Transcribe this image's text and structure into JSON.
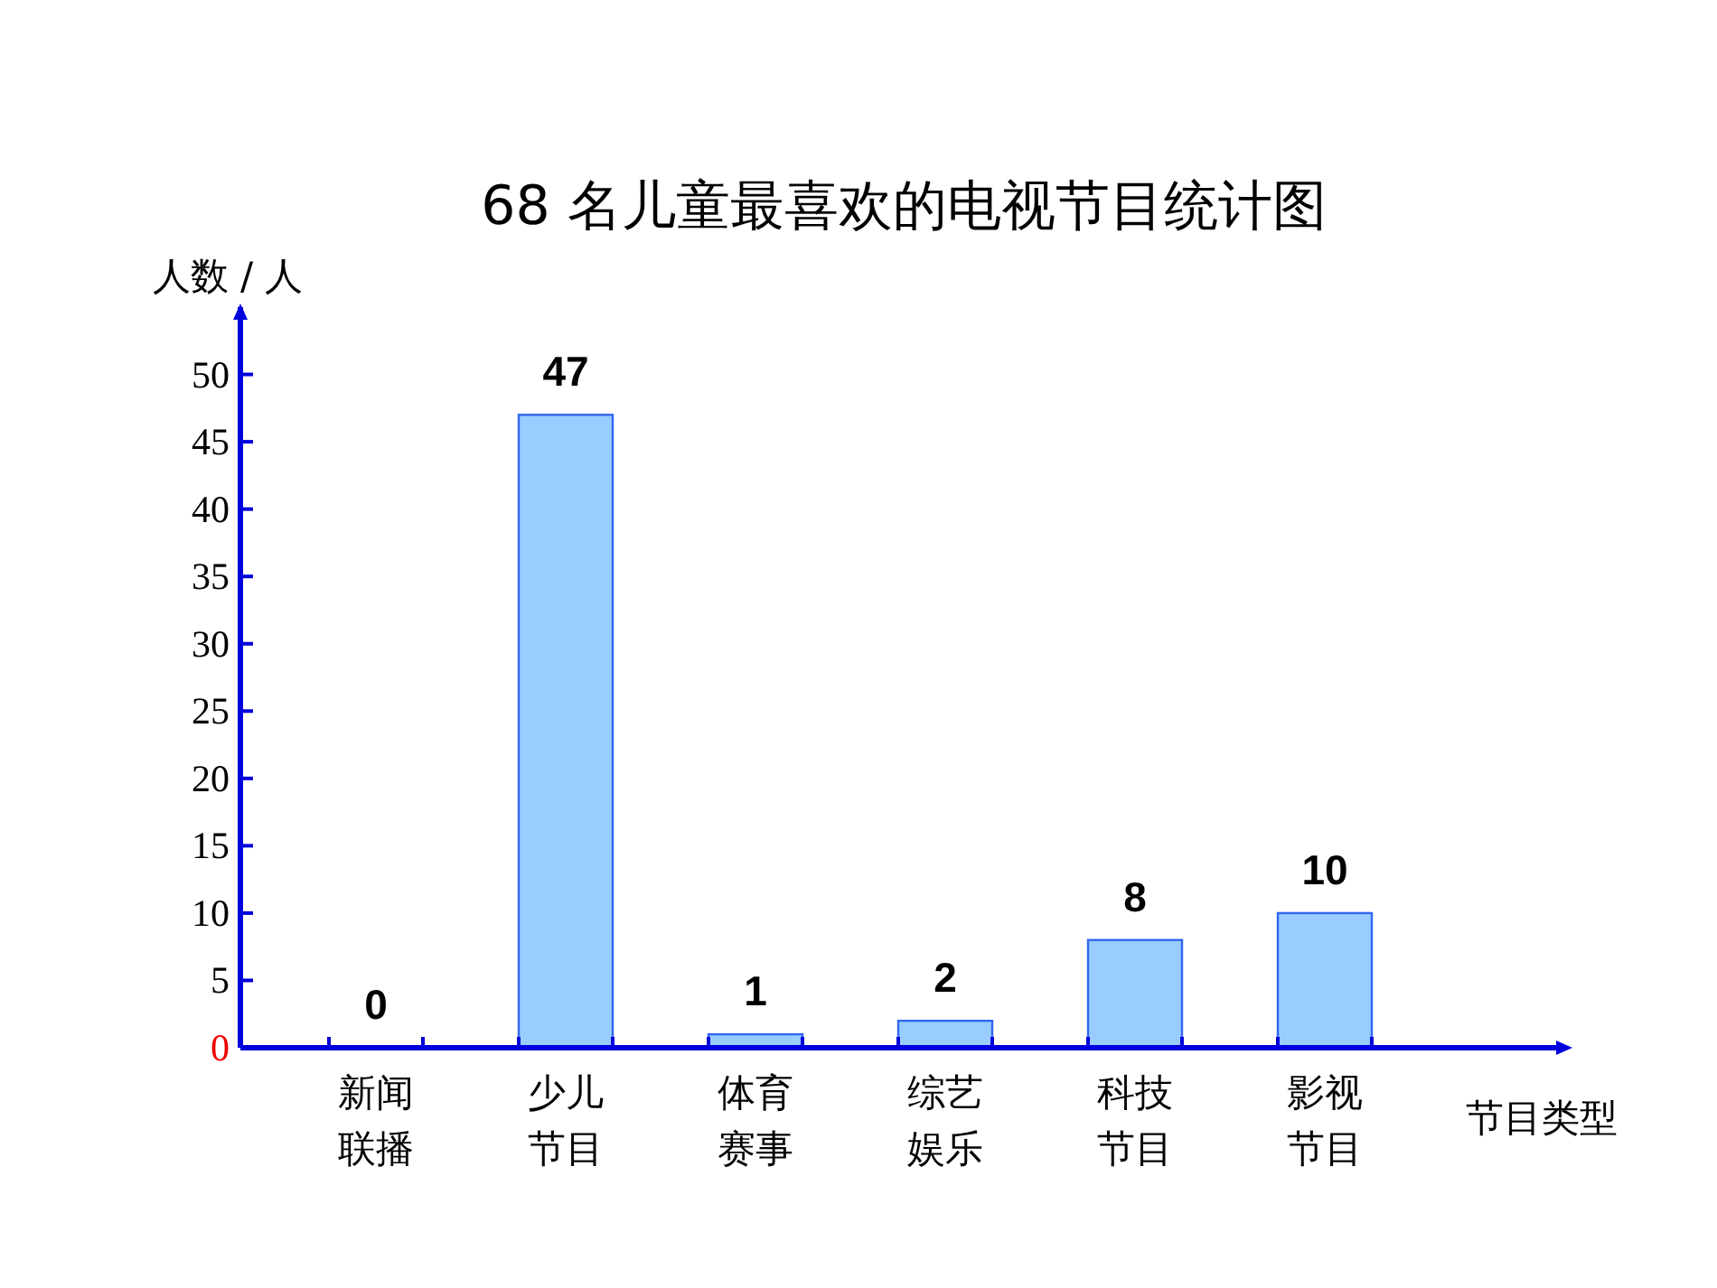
{
  "chart_data": {
    "type": "bar",
    "title": "68 名儿童最喜欢的电视节目统计图",
    "xlabel": "节目类型",
    "ylabel": "人数 / 人",
    "categories": [
      "新闻联播",
      "少儿节目",
      "体育赛事",
      "综艺娱乐",
      "科技节目",
      "影视节目"
    ],
    "values": [
      0,
      47,
      1,
      2,
      8,
      10
    ],
    "color": "#99ccff",
    "ylim": [
      0,
      55
    ],
    "yticks": [
      0,
      5,
      10,
      15,
      20,
      25,
      30,
      35,
      40,
      45,
      50
    ],
    "grid": false,
    "data_labels": true
  }
}
